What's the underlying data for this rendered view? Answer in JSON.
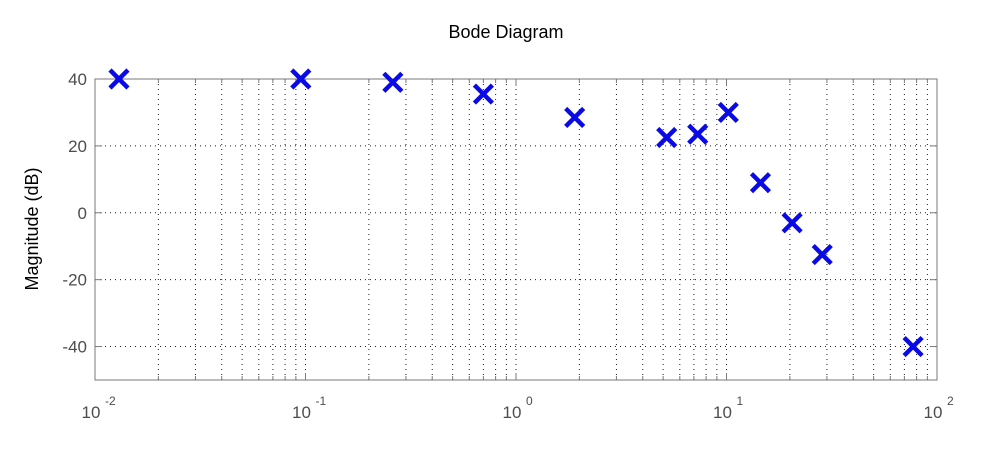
{
  "chart_data": {
    "type": "scatter",
    "title": "Bode Diagram",
    "xlabel": "",
    "ylabel": "Magnitude (dB)",
    "x_scale": "log",
    "xlim": [
      0.01,
      100
    ],
    "ylim": [
      -50,
      40
    ],
    "x_ticks": [
      {
        "value": 0.01,
        "base": "10",
        "exp": "-2"
      },
      {
        "value": 0.1,
        "base": "10",
        "exp": "-1"
      },
      {
        "value": 1,
        "base": "10",
        "exp": "0"
      },
      {
        "value": 10,
        "base": "10",
        "exp": "1"
      },
      {
        "value": 100,
        "base": "10",
        "exp": "2"
      }
    ],
    "y_ticks": [
      {
        "value": 40,
        "label": "40"
      },
      {
        "value": 20,
        "label": "20"
      },
      {
        "value": 0,
        "label": "0"
      },
      {
        "value": -20,
        "label": "-20"
      },
      {
        "value": -40,
        "label": "-40"
      }
    ],
    "grid": true,
    "grid_style": "dotted",
    "marker": "x",
    "color": "#0a0ae6",
    "series": [
      {
        "points": [
          {
            "x": 0.013,
            "y": 40
          },
          {
            "x": 0.095,
            "y": 40
          },
          {
            "x": 0.26,
            "y": 39
          },
          {
            "x": 0.7,
            "y": 35.5
          },
          {
            "x": 1.9,
            "y": 28.5
          },
          {
            "x": 5.2,
            "y": 22.5
          },
          {
            "x": 7.3,
            "y": 23.5
          },
          {
            "x": 10.2,
            "y": 30
          },
          {
            "x": 14.5,
            "y": 9
          },
          {
            "x": 20.5,
            "y": -3
          },
          {
            "x": 28.5,
            "y": -12.5
          },
          {
            "x": 77,
            "y": -40
          }
        ]
      }
    ]
  }
}
